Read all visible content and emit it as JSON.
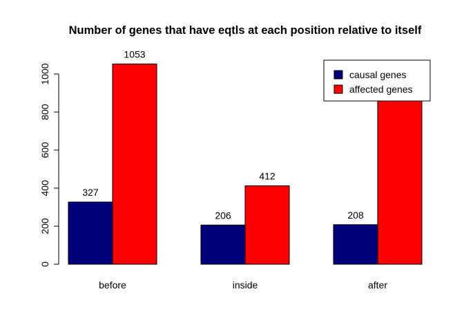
{
  "chart_data": {
    "type": "bar",
    "title": "Number of genes that have eqtls at each position relative to itself",
    "xlabel": "",
    "ylabel": "",
    "categories": [
      "before",
      "inside",
      "after"
    ],
    "series": [
      {
        "name": "causal genes",
        "values": [
          327,
          206,
          208
        ],
        "color": "#00007A"
      },
      {
        "name": "affected genes",
        "values": [
          1053,
          412,
          884
        ],
        "color": "#FF0000"
      }
    ],
    "y_ticks": [
      0,
      200,
      400,
      600,
      800,
      1000
    ],
    "ylim": [
      0,
      1090
    ],
    "grid": false,
    "legend_position": "top-right",
    "data_labels": true
  }
}
